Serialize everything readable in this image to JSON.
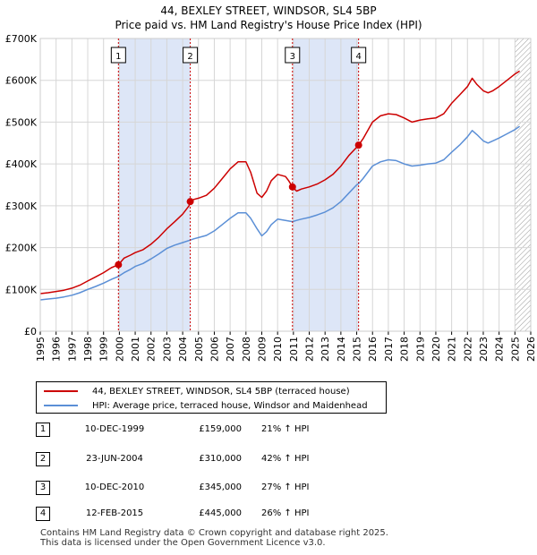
{
  "title_line1": "44, BEXLEY STREET, WINDSOR, SL4 5BP",
  "title_line2": "Price paid vs. HM Land Registry's House Price Index (HPI)",
  "chart_data": {
    "type": "line",
    "title": "44, BEXLEY STREET, WINDSOR, SL4 5BP — Price paid vs. HM Land Registry's House Price Index (HPI)",
    "xlabel": "",
    "ylabel": "",
    "xlim": [
      1995,
      2026
    ],
    "ylim": [
      0,
      700000
    ],
    "yticks": [
      0,
      100000,
      200000,
      300000,
      400000,
      500000,
      600000,
      700000
    ],
    "ytick_labels": [
      "£0",
      "£100K",
      "£200K",
      "£300K",
      "£400K",
      "£500K",
      "£600K",
      "£700K"
    ],
    "xticks": [
      "1995",
      "1996",
      "1997",
      "1998",
      "1999",
      "2000",
      "2001",
      "2002",
      "2003",
      "2004",
      "2005",
      "2006",
      "2007",
      "2008",
      "2009",
      "2010",
      "2011",
      "2012",
      "2013",
      "2014",
      "2015",
      "2016",
      "2017",
      "2018",
      "2019",
      "2020",
      "2021",
      "2022",
      "2023",
      "2024",
      "2025",
      "2026"
    ],
    "grid": true,
    "series": [
      {
        "name": "44, BEXLEY STREET, WINDSOR, SL4 5BP (terraced house)",
        "color": "#cc0000",
        "x": [
          1995.0,
          1995.5,
          1996.0,
          1996.5,
          1997.0,
          1997.5,
          1998.0,
          1998.5,
          1999.0,
          1999.5,
          1999.94,
          2000.3,
          2000.7,
          2001.0,
          2001.5,
          2002.0,
          2002.5,
          2003.0,
          2003.5,
          2004.0,
          2004.4,
          2004.48,
          2004.7,
          2005.0,
          2005.5,
          2006.0,
          2006.5,
          2007.0,
          2007.5,
          2008.0,
          2008.3,
          2008.7,
          2009.0,
          2009.3,
          2009.6,
          2010.0,
          2010.5,
          2010.7,
          2010.94,
          2011.2,
          2011.5,
          2012.0,
          2012.5,
          2013.0,
          2013.5,
          2014.0,
          2014.5,
          2015.0,
          2015.12,
          2015.4,
          2015.7,
          2016.0,
          2016.5,
          2017.0,
          2017.5,
          2018.0,
          2018.5,
          2019.0,
          2019.5,
          2020.0,
          2020.5,
          2021.0,
          2021.5,
          2022.0,
          2022.3,
          2022.6,
          2023.0,
          2023.3,
          2023.6,
          2024.0,
          2024.5,
          2025.0,
          2025.3
        ],
        "y": [
          90000,
          92000,
          95000,
          98000,
          103000,
          110000,
          120000,
          130000,
          140000,
          152000,
          159000,
          175000,
          182000,
          188000,
          195000,
          208000,
          225000,
          245000,
          262000,
          280000,
          300000,
          310000,
          315000,
          318000,
          325000,
          342000,
          365000,
          388000,
          405000,
          405000,
          380000,
          330000,
          320000,
          335000,
          360000,
          375000,
          370000,
          360000,
          345000,
          335000,
          340000,
          345000,
          352000,
          362000,
          375000,
          395000,
          420000,
          440000,
          445000,
          460000,
          480000,
          500000,
          515000,
          520000,
          518000,
          510000,
          500000,
          505000,
          508000,
          510000,
          520000,
          545000,
          565000,
          585000,
          605000,
          590000,
          575000,
          570000,
          575000,
          585000,
          600000,
          615000,
          622000
        ]
      },
      {
        "name": "HPI: Average price, terraced house, Windsor and Maidenhead",
        "color": "#5b8fd6",
        "x": [
          1995.0,
          1995.5,
          1996.0,
          1996.5,
          1997.0,
          1997.5,
          1998.0,
          1998.5,
          1999.0,
          1999.5,
          1999.94,
          2000.3,
          2000.7,
          2001.0,
          2001.5,
          2002.0,
          2002.5,
          2003.0,
          2003.5,
          2004.0,
          2004.48,
          2004.7,
          2005.0,
          2005.5,
          2006.0,
          2006.5,
          2007.0,
          2007.5,
          2008.0,
          2008.3,
          2008.7,
          2009.0,
          2009.3,
          2009.6,
          2010.0,
          2010.5,
          2010.94,
          2011.2,
          2011.5,
          2012.0,
          2012.5,
          2013.0,
          2013.5,
          2014.0,
          2014.5,
          2015.0,
          2015.12,
          2015.4,
          2015.7,
          2016.0,
          2016.5,
          2017.0,
          2017.5,
          2018.0,
          2018.5,
          2019.0,
          2019.5,
          2020.0,
          2020.5,
          2021.0,
          2021.5,
          2022.0,
          2022.3,
          2022.6,
          2023.0,
          2023.3,
          2023.6,
          2024.0,
          2024.5,
          2025.0,
          2025.3
        ],
        "y": [
          75000,
          77000,
          79000,
          82000,
          86000,
          92000,
          100000,
          107000,
          115000,
          124000,
          131000,
          140000,
          148000,
          155000,
          162000,
          173000,
          185000,
          198000,
          206000,
          212000,
          218000,
          221000,
          224000,
          229000,
          240000,
          255000,
          270000,
          283000,
          283000,
          270000,
          245000,
          228000,
          238000,
          255000,
          268000,
          265000,
          262000,
          265000,
          268000,
          272000,
          278000,
          285000,
          295000,
          310000,
          330000,
          350000,
          353000,
          365000,
          380000,
          395000,
          405000,
          410000,
          408000,
          400000,
          395000,
          397000,
          400000,
          402000,
          410000,
          428000,
          445000,
          465000,
          480000,
          470000,
          455000,
          450000,
          455000,
          462000,
          472000,
          482000,
          490000
        ]
      }
    ],
    "sales": [
      {
        "label": "1",
        "x": 1999.94,
        "y": 159000
      },
      {
        "label": "2",
        "x": 2004.48,
        "y": 310000
      },
      {
        "label": "3",
        "x": 2010.94,
        "y": 345000
      },
      {
        "label": "4",
        "x": 2015.12,
        "y": 445000
      }
    ],
    "shaded_ranges": [
      [
        1999.94,
        2004.48
      ],
      [
        2010.94,
        2015.12
      ]
    ],
    "hatched_from": 2025.0
  },
  "legend": {
    "property": "44, BEXLEY STREET, WINDSOR, SL4 5BP (terraced house)",
    "hpi": "HPI: Average price, terraced house, Windsor and Maidenhead",
    "property_color": "#cc0000",
    "hpi_color": "#5b8fd6"
  },
  "sales_table": [
    {
      "num": "1",
      "date": "10-DEC-1999",
      "price": "£159,000",
      "hpi": "21% ↑ HPI"
    },
    {
      "num": "2",
      "date": "23-JUN-2004",
      "price": "£310,000",
      "hpi": "42% ↑ HPI"
    },
    {
      "num": "3",
      "date": "10-DEC-2010",
      "price": "£345,000",
      "hpi": "27% ↑ HPI"
    },
    {
      "num": "4",
      "date": "12-FEB-2015",
      "price": "£445,000",
      "hpi": "26% ↑ HPI"
    }
  ],
  "footer": {
    "line1": "Contains HM Land Registry data © Crown copyright and database right 2025.",
    "line2": "This data is licensed under the Open Government Licence v3.0."
  }
}
